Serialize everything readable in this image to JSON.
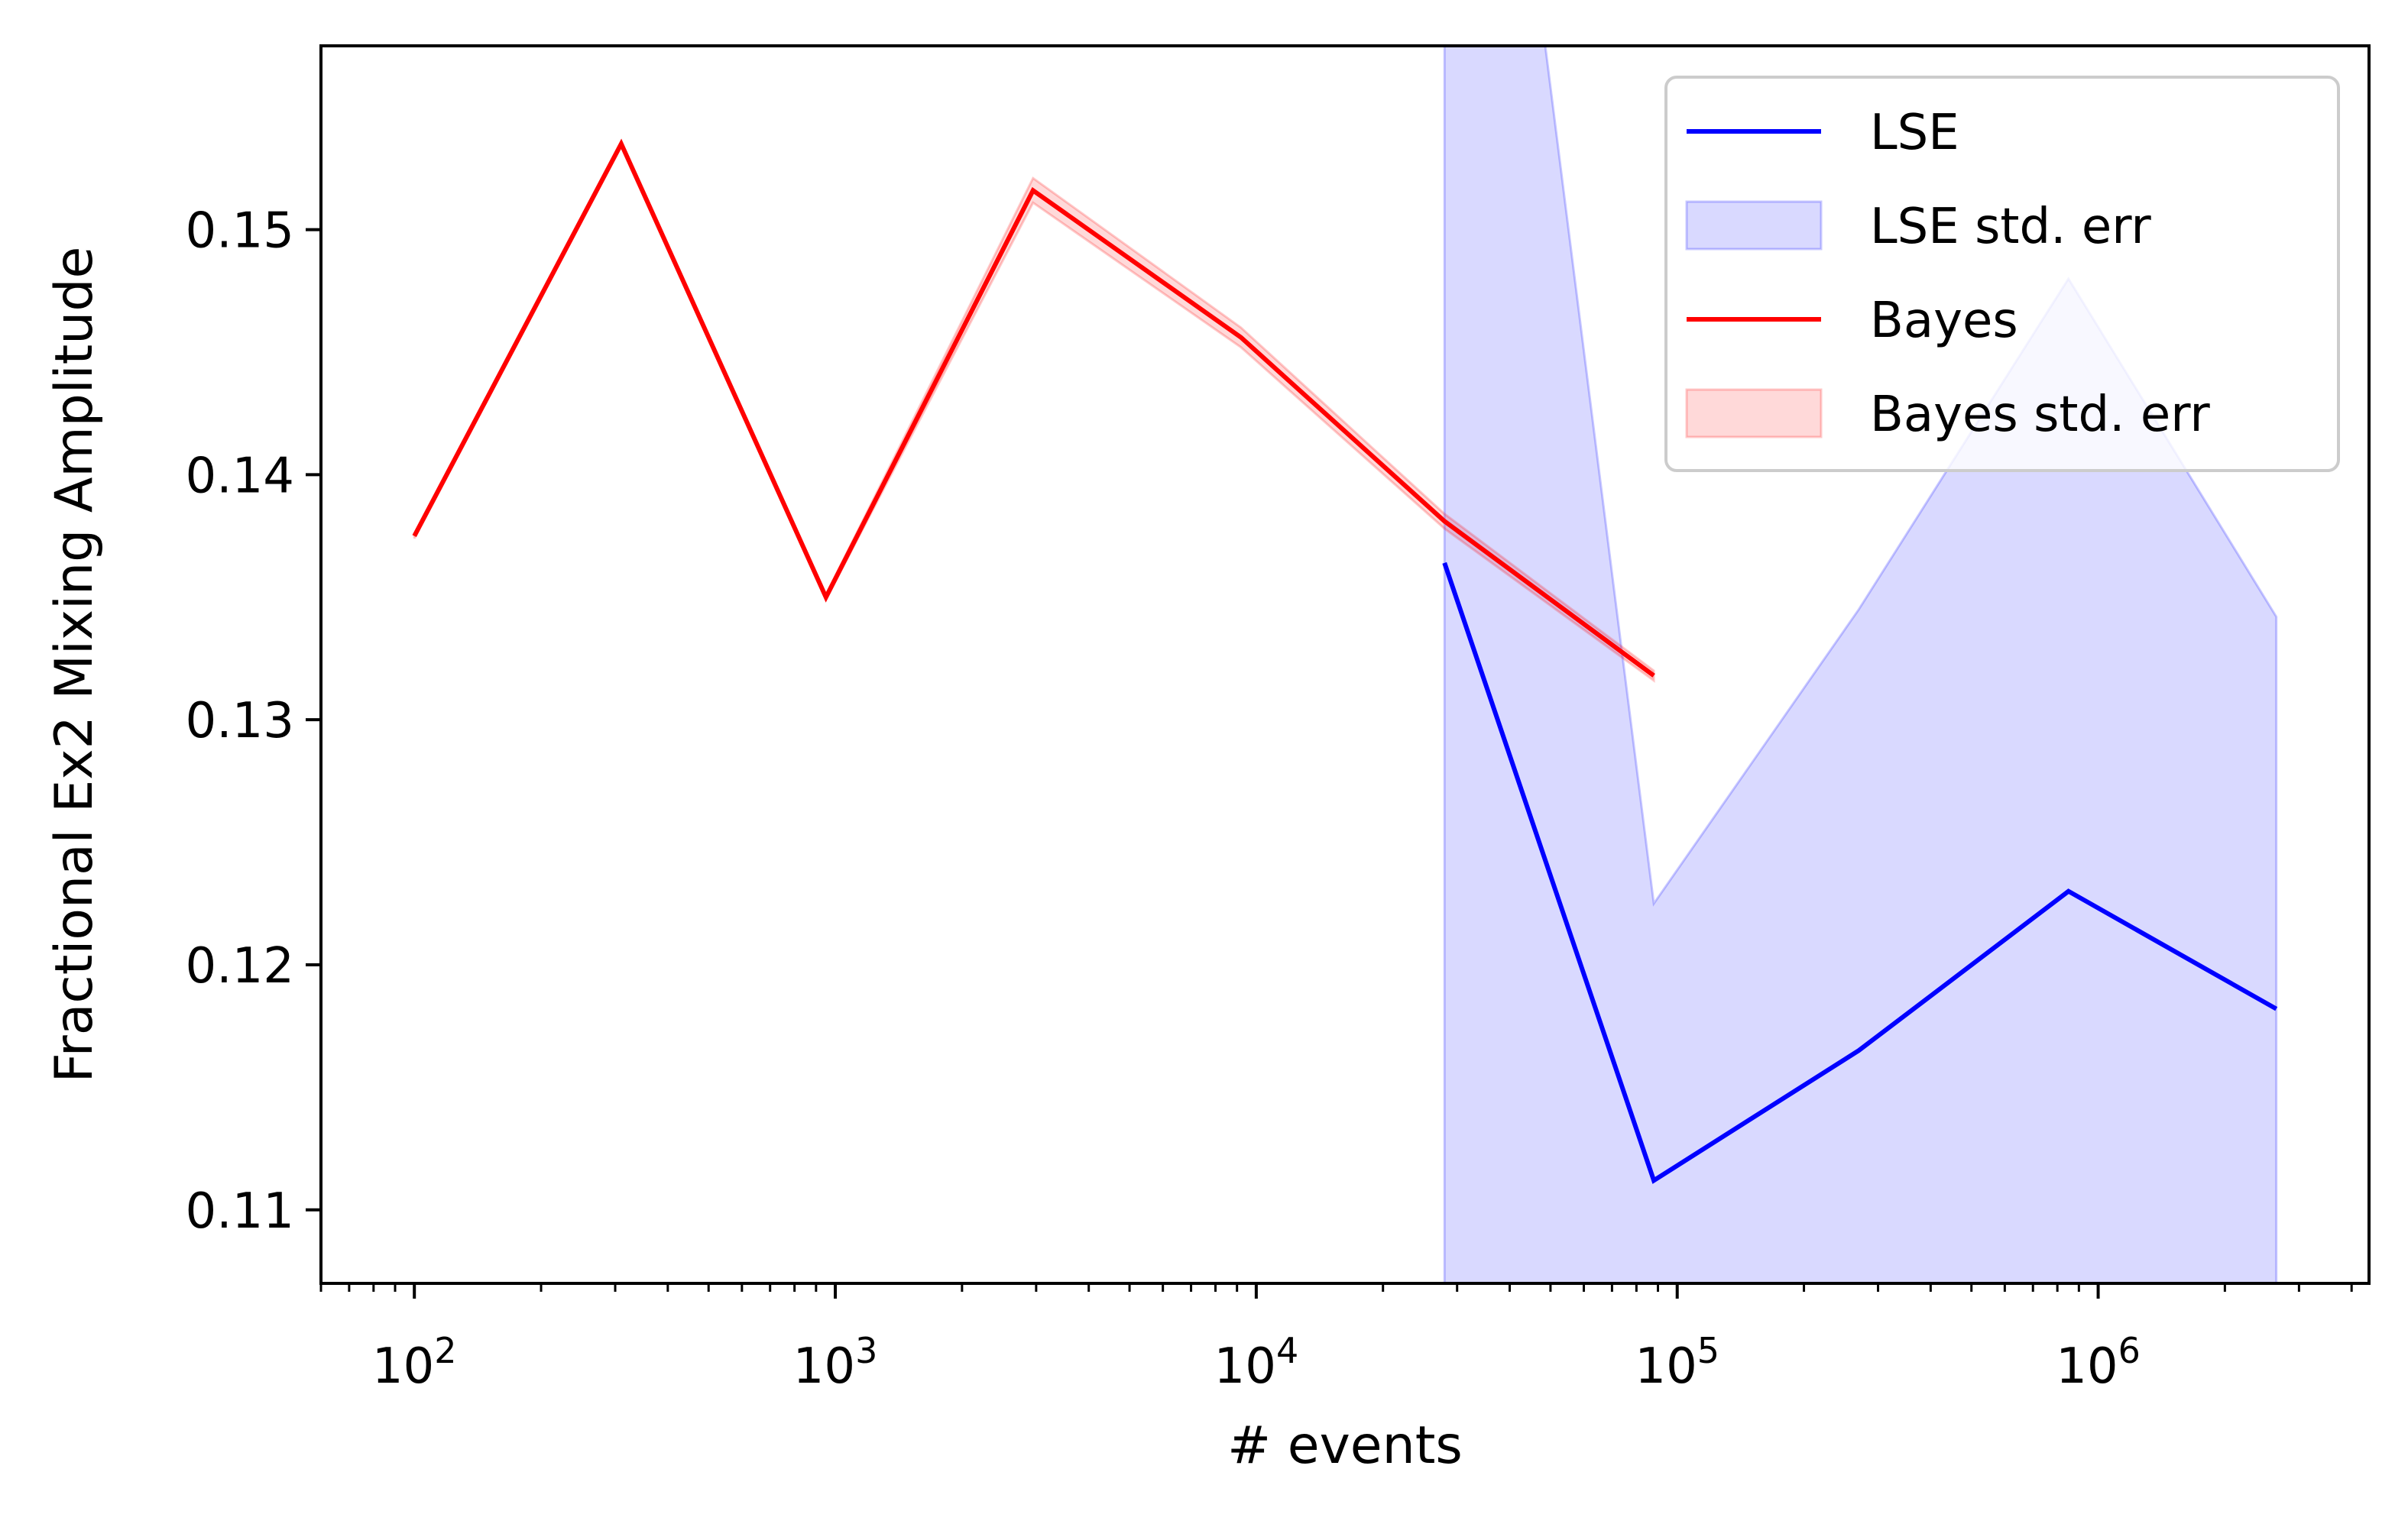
{
  "chart_data": {
    "type": "line",
    "title": "",
    "xlabel": "# events",
    "ylabel": "Fractional Ex2 Mixing Amplitude",
    "xscale": "log",
    "xlim": [
      60,
      4400000
    ],
    "ylim": [
      0.107,
      0.1575
    ],
    "grid": false,
    "legend_position": "top-right",
    "x_ticks": [
      {
        "value": 100,
        "base": "10",
        "exp": "2"
      },
      {
        "value": 1000,
        "base": "10",
        "exp": "3"
      },
      {
        "value": 10000,
        "base": "10",
        "exp": "4"
      },
      {
        "value": 100000,
        "base": "10",
        "exp": "5"
      },
      {
        "value": 1000000,
        "base": "10",
        "exp": "6"
      }
    ],
    "y_ticks": [
      {
        "value": 0.11,
        "label": "0.11"
      },
      {
        "value": 0.12,
        "label": "0.12"
      },
      {
        "value": 0.13,
        "label": "0.13"
      },
      {
        "value": 0.14,
        "label": "0.14"
      },
      {
        "value": 0.15,
        "label": "0.15"
      }
    ],
    "series": [
      {
        "name": "LSE",
        "color": "#0000ff",
        "x": [
          28000,
          88000,
          270000,
          850000,
          2650000
        ],
        "y": [
          0.1364,
          0.1112,
          0.1165,
          0.123,
          0.1182
        ]
      },
      {
        "name": "Bayes",
        "color": "#ff0000",
        "x": [
          100,
          310,
          950,
          2950,
          9200,
          28000,
          88000
        ],
        "y": [
          0.1375,
          0.1535,
          0.135,
          0.1516,
          0.1456,
          0.1381,
          0.1318
        ]
      }
    ],
    "bands": [
      {
        "name": "LSE std. err",
        "color": "#0000ff",
        "opacity": 0.15,
        "x": [
          28000,
          88000,
          270000,
          850000,
          2650000
        ],
        "lower": [
          0.1,
          0.1,
          0.1,
          0.1,
          0.1
        ],
        "upper": [
          0.19,
          0.1225,
          0.1345,
          0.148,
          0.1342
        ]
      },
      {
        "name": "Bayes std. err",
        "color": "#ff0000",
        "opacity": 0.15,
        "x": [
          100,
          310,
          950,
          2950,
          9200,
          28000,
          88000
        ],
        "lower": [
          0.1374,
          0.1534,
          0.1349,
          0.1511,
          0.1452,
          0.1378,
          0.1316
        ],
        "upper": [
          0.1376,
          0.1536,
          0.1351,
          0.1521,
          0.146,
          0.1384,
          0.132
        ]
      }
    ],
    "legend": [
      "LSE",
      "LSE std. err",
      "Bayes",
      "Bayes std. err"
    ]
  }
}
